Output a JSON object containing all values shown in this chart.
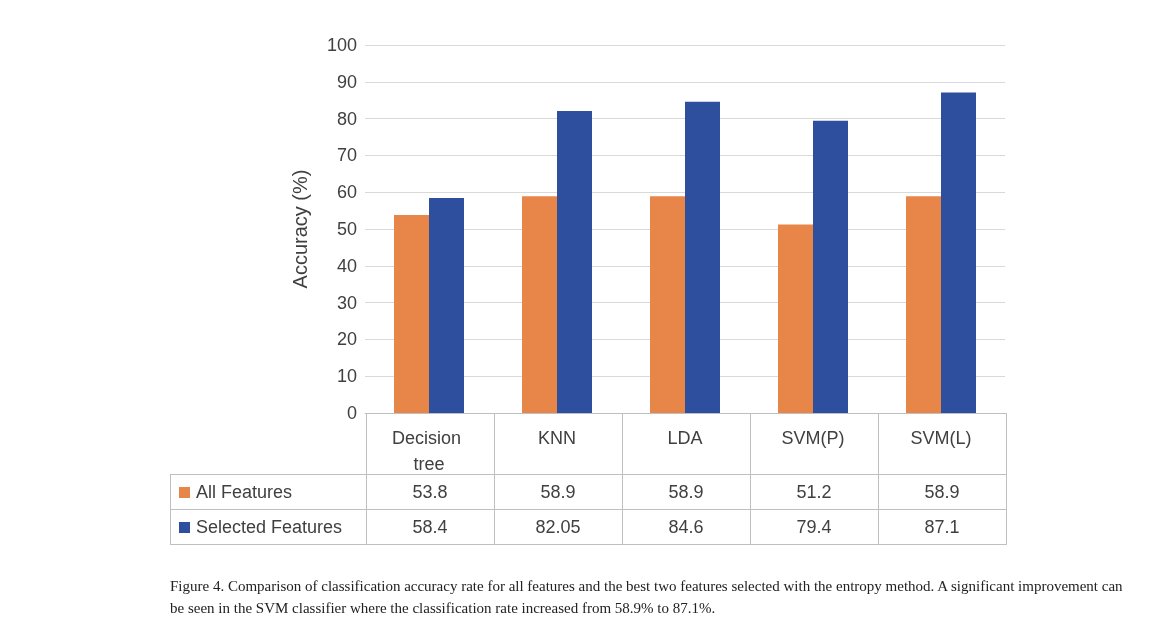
{
  "chart_data": {
    "type": "bar",
    "ylabel": "Accuracy (%)",
    "categories": [
      "Decision tree",
      "KNN",
      "LDA",
      "SVM(P)",
      "SVM(L)"
    ],
    "series": [
      {
        "name": "All Features",
        "color": "#e8864a",
        "values": [
          53.8,
          58.9,
          58.9,
          51.2,
          58.9
        ]
      },
      {
        "name": "Selected Features",
        "color": "#2e4e9e",
        "values": [
          58.4,
          82.05,
          84.6,
          79.4,
          87.1
        ]
      }
    ],
    "ylim": [
      0,
      100
    ],
    "yticks": [
      0,
      10,
      20,
      30,
      40,
      50,
      60,
      70,
      80,
      90,
      100
    ],
    "grid": "y",
    "legend": "bottom",
    "data_labels": true,
    "annotations": [
      "Figure 4. Comparison of classification accuracy rate for all features and the best two features selected with the entropy method. A significant improvement can be seen in the SVM classifier where the classification rate increased from 58.9% to 87.1%."
    ]
  }
}
